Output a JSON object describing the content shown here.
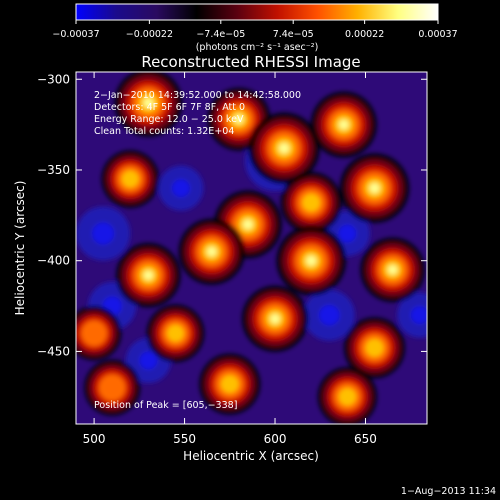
{
  "chart_data": {
    "type": "heatmap",
    "title": "Reconstructed RHESSI Image",
    "xlabel": "Heliocentric X (arcsec)",
    "ylabel": "Heliocentric Y (arcsec)",
    "xlim": [
      490,
      684
    ],
    "ylim": [
      -490,
      -296
    ],
    "x_ticks": [
      500,
      550,
      600,
      650
    ],
    "y_ticks": [
      -300,
      -350,
      -400,
      -450
    ],
    "x_tick_labels": [
      "500",
      "550",
      "600",
      "650"
    ],
    "y_tick_labels": [
      "−300",
      "−350",
      "−400",
      "−450"
    ],
    "grid": false,
    "colorbar": {
      "range": [
        -0.00037,
        0.00037
      ],
      "ticks": [
        -0.00037,
        -0.00022,
        -7.4e-05,
        7.4e-05,
        0.00022,
        0.00037
      ],
      "tick_labels": [
        "−0.00037",
        "−0.00022",
        "−7.4e−05",
        "7.4e−05",
        "0.00022",
        "0.00037"
      ],
      "unit_label": "(photons cm⁻² s⁻¹ asec⁻²)",
      "colormap_stops": [
        "#0000ff",
        "#1a0a8c",
        "#2a0a60",
        "#000000",
        "#5a0010",
        "#c01000",
        "#ff5000",
        "#ffb000",
        "#ffff80",
        "#ffffff"
      ]
    },
    "annotations": [
      "2−Jan−2010 14:39:52.000 to 14:42:58.000",
      "Detectors: 4F 5F 6F 7F 8F, Att 0",
      "Energy Range: 12.0 − 25.0 keV",
      "Clean    Total counts: 1.32E+04"
    ],
    "peak_label": "Position of Peak = [605,−338]",
    "peak_position": [
      605,
      -338
    ],
    "image_sources": [
      {
        "x": 530,
        "y": -313,
        "intensity": 0.9
      },
      {
        "x": 580,
        "y": -322,
        "intensity": 0.75
      },
      {
        "x": 605,
        "y": -338,
        "intensity": 1.0
      },
      {
        "x": 638,
        "y": -325,
        "intensity": 0.85
      },
      {
        "x": 520,
        "y": -355,
        "intensity": 0.6
      },
      {
        "x": 585,
        "y": -380,
        "intensity": 0.9
      },
      {
        "x": 620,
        "y": -368,
        "intensity": 0.7
      },
      {
        "x": 655,
        "y": -360,
        "intensity": 0.95
      },
      {
        "x": 565,
        "y": -395,
        "intensity": 0.85
      },
      {
        "x": 530,
        "y": -408,
        "intensity": 0.8
      },
      {
        "x": 620,
        "y": -400,
        "intensity": 0.95
      },
      {
        "x": 665,
        "y": -405,
        "intensity": 0.8
      },
      {
        "x": 545,
        "y": -440,
        "intensity": 0.6
      },
      {
        "x": 600,
        "y": -432,
        "intensity": 0.85
      },
      {
        "x": 655,
        "y": -448,
        "intensity": 0.7
      },
      {
        "x": 510,
        "y": -470,
        "intensity": 0.55
      },
      {
        "x": 575,
        "y": -468,
        "intensity": 0.7
      },
      {
        "x": 640,
        "y": -475,
        "intensity": 0.65
      },
      {
        "x": 500,
        "y": -440,
        "intensity": 0.5
      }
    ],
    "negative_regions": [
      {
        "x": 600,
        "y": -345,
        "intensity": 0.6
      },
      {
        "x": 548,
        "y": -360,
        "intensity": 0.35
      },
      {
        "x": 505,
        "y": -385,
        "intensity": 0.5
      },
      {
        "x": 510,
        "y": -425,
        "intensity": 0.4
      },
      {
        "x": 640,
        "y": -385,
        "intensity": 0.35
      },
      {
        "x": 630,
        "y": -430,
        "intensity": 0.45
      },
      {
        "x": 530,
        "y": -455,
        "intensity": 0.35
      },
      {
        "x": 680,
        "y": -430,
        "intensity": 0.35
      }
    ]
  },
  "footer": {
    "date": "1−Aug−2013 11:34"
  }
}
